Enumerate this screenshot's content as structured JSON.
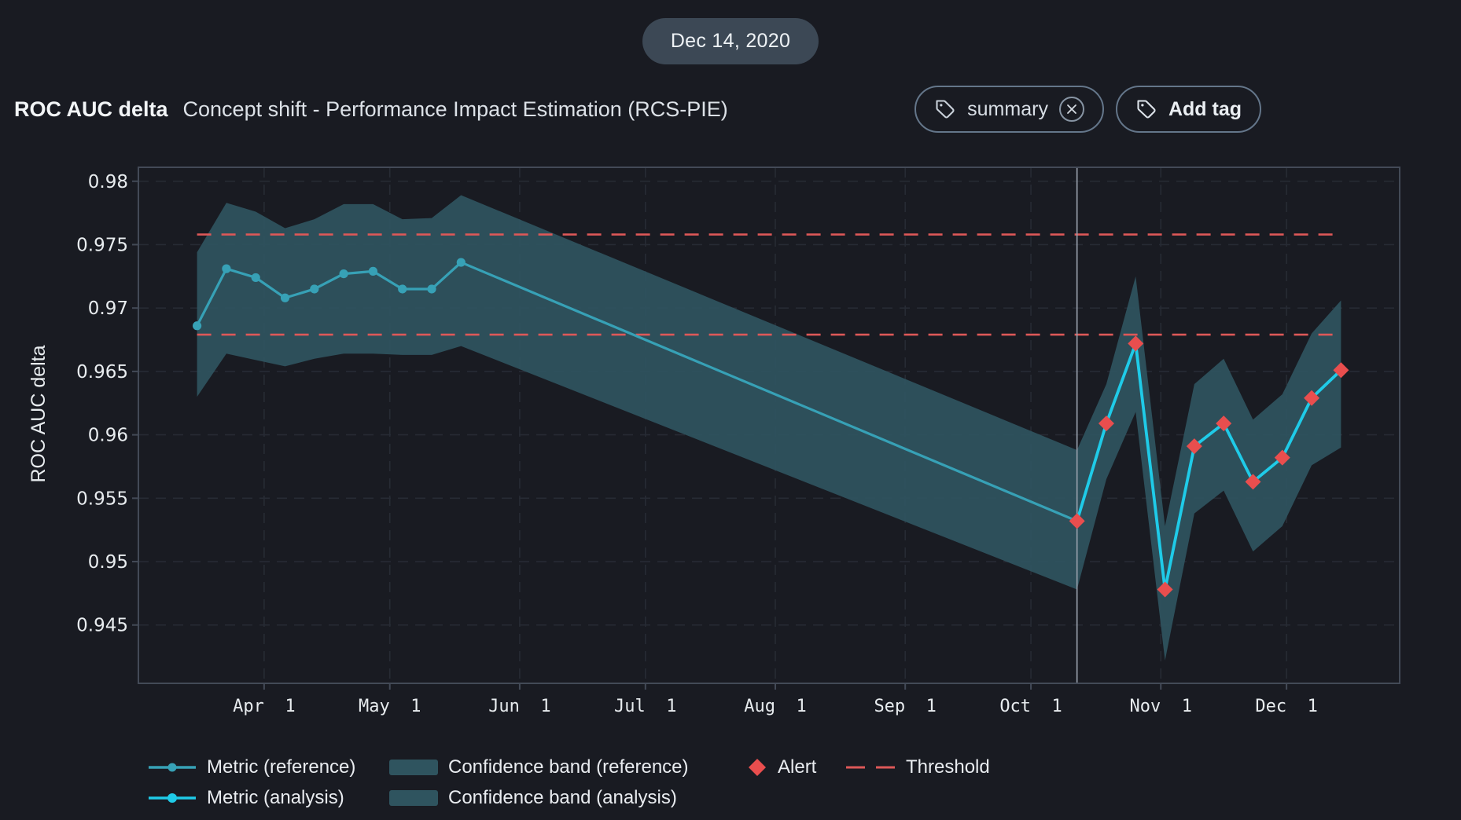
{
  "header": {
    "date_badge": "Dec 14, 2020",
    "title": "ROC AUC delta",
    "subtitle": "Concept shift - Performance Impact Estimation (RCS-PIE)",
    "tags": {
      "summary_label": "summary",
      "add_label": "Add tag"
    }
  },
  "colors": {
    "page_bg": "#191b22",
    "pill_bg": "#3c4855",
    "tag_border": "#64768a",
    "text_primary": "#f2f5f7",
    "text_secondary": "#dce1e7",
    "axis_text": "#e8ecef",
    "grid": "#272b34",
    "plot_border": "#434a57",
    "divider": "#9aa2ae",
    "ref_line": "#37a1b6",
    "analysis_line": "#1fcbe8",
    "band_fill": "#2f545f",
    "alert_red": "#e94e4e",
    "threshold_red": "#dd5858"
  },
  "chart_data": {
    "type": "line",
    "title": "",
    "xlabel": "",
    "ylabel": "ROC AUC delta",
    "grid": true,
    "legend_position": "bottom",
    "y_range": [
      0.9404,
      0.9811
    ],
    "x_range_days": [
      1,
      302
    ],
    "y_ticks": {
      "values": [
        0.98,
        0.975,
        0.97,
        0.965,
        0.96,
        0.955,
        0.95,
        0.945
      ],
      "labels": [
        "0.98",
        "0.975",
        "0.97",
        "0.965",
        "0.96",
        "0.955",
        "0.95",
        "0.945"
      ]
    },
    "x_ticks": {
      "days": [
        31,
        61,
        92,
        122,
        153,
        184,
        214,
        245,
        275
      ],
      "labels": [
        "Apr  1",
        "May  1",
        "Jun  1",
        "Jul  1",
        "Aug  1",
        "Sep  1",
        "Oct  1",
        "Nov  1",
        "Dec  1"
      ]
    },
    "thresholds": {
      "values": [
        0.9758,
        0.9679
      ],
      "span_days": [
        15,
        288
      ]
    },
    "divider_day": 225,
    "series": [
      {
        "name": "Metric (reference)",
        "x_days": [
          15,
          22,
          29,
          36,
          43,
          50,
          57,
          64,
          71,
          78,
          225
        ],
        "values": [
          0.9686,
          0.9731,
          0.9724,
          0.9708,
          0.9715,
          0.9727,
          0.9729,
          0.9715,
          0.9715,
          0.9736,
          0.9532
        ],
        "marker_count": 10,
        "band_top": [
          0.9744,
          0.9783,
          0.9776,
          0.9763,
          0.977,
          0.9782,
          0.9782,
          0.977,
          0.9771,
          0.9789,
          0.9588
        ],
        "band_bottom": [
          0.963,
          0.9664,
          0.9659,
          0.9654,
          0.966,
          0.9664,
          0.9664,
          0.9663,
          0.9663,
          0.967,
          0.9478
        ]
      },
      {
        "name": "Metric (analysis)",
        "x_days": [
          225,
          232,
          239,
          246,
          253,
          260,
          267,
          274,
          281,
          288
        ],
        "values": [
          0.9532,
          0.9609,
          0.9672,
          0.9478,
          0.9591,
          0.9609,
          0.9563,
          0.9582,
          0.9629,
          0.9651
        ],
        "alerts": [
          true,
          true,
          true,
          true,
          true,
          true,
          true,
          true,
          true,
          true
        ],
        "band_top": [
          0.9588,
          0.964,
          0.9725,
          0.9528,
          0.964,
          0.966,
          0.9612,
          0.9632,
          0.968,
          0.9706
        ],
        "band_bottom": [
          0.9478,
          0.9565,
          0.9618,
          0.9422,
          0.9538,
          0.9556,
          0.9508,
          0.9528,
          0.9576,
          0.959
        ]
      }
    ],
    "legend": {
      "metric_ref": "Metric (reference)",
      "metric_analysis": "Metric (analysis)",
      "band_ref": "Confidence band (reference)",
      "band_analysis": "Confidence band (analysis)",
      "alert": "Alert",
      "threshold": "Threshold"
    }
  }
}
